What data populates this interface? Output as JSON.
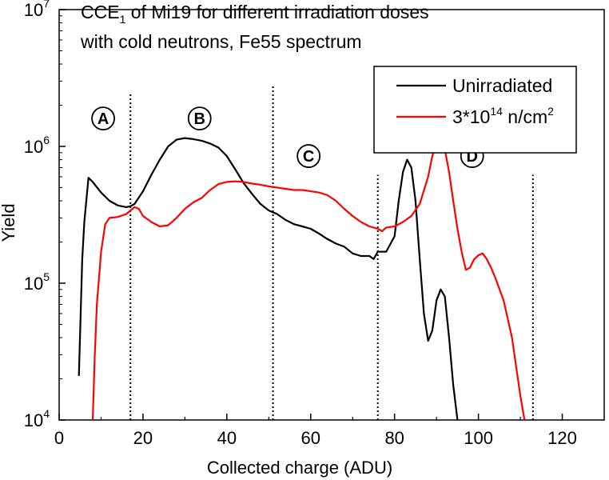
{
  "chart_data": {
    "type": "line",
    "title_lines": [
      "CCE1 of Mi19 for different irradiation doses",
      "with cold neutrons, Fe55 spectrum"
    ],
    "title_parts": {
      "pre": "CCE",
      "sub": "1",
      "post": " of Mi19 for different irradiation doses",
      "line2": "with cold neutrons, Fe55 spectrum"
    },
    "xlabel": "Collected charge (ADU)",
    "ylabel": "Yield",
    "xlim": [
      0,
      130
    ],
    "ylim": [
      10000,
      10000000
    ],
    "y_scale": "log",
    "x_ticks": [
      0,
      20,
      40,
      60,
      80,
      100,
      120
    ],
    "y_ticks": [
      {
        "value": 10000,
        "base": "10",
        "exp": "4"
      },
      {
        "value": 100000,
        "base": "10",
        "exp": "5"
      },
      {
        "value": 1000000,
        "base": "10",
        "exp": "6"
      },
      {
        "value": 10000000,
        "base": "10",
        "exp": "7"
      }
    ],
    "grid": false,
    "legend_position": "top-right",
    "series": [
      {
        "name": "Unirradiated",
        "color": "#000000",
        "points": [
          [
            4.7,
            21000
          ],
          [
            5.5,
            150000
          ],
          [
            6,
            280000
          ],
          [
            7,
            590000
          ],
          [
            8,
            550000
          ],
          [
            10,
            460000
          ],
          [
            12,
            400000
          ],
          [
            14,
            370000
          ],
          [
            16,
            360000
          ],
          [
            17,
            365000
          ],
          [
            18,
            380000
          ],
          [
            20,
            470000
          ],
          [
            22,
            620000
          ],
          [
            24,
            800000
          ],
          [
            26,
            1000000
          ],
          [
            28,
            1120000
          ],
          [
            30,
            1150000
          ],
          [
            32,
            1130000
          ],
          [
            34,
            1100000
          ],
          [
            36,
            1050000
          ],
          [
            38,
            980000
          ],
          [
            40,
            850000
          ],
          [
            42,
            680000
          ],
          [
            44,
            540000
          ],
          [
            46,
            450000
          ],
          [
            48,
            380000
          ],
          [
            50,
            340000
          ],
          [
            52,
            320000
          ],
          [
            54,
            290000
          ],
          [
            56,
            270000
          ],
          [
            58,
            260000
          ],
          [
            60,
            250000
          ],
          [
            62,
            230000
          ],
          [
            64,
            210000
          ],
          [
            66,
            195000
          ],
          [
            68,
            185000
          ],
          [
            70,
            165000
          ],
          [
            72,
            158000
          ],
          [
            74,
            158000
          ],
          [
            75,
            150000
          ],
          [
            76,
            170000
          ],
          [
            78,
            170000
          ],
          [
            80,
            220000
          ],
          [
            81,
            400000
          ],
          [
            82,
            650000
          ],
          [
            83,
            800000
          ],
          [
            84,
            700000
          ],
          [
            85,
            400000
          ],
          [
            86,
            150000
          ],
          [
            87,
            60000
          ],
          [
            88,
            38000
          ],
          [
            89,
            45000
          ],
          [
            90,
            75000
          ],
          [
            91,
            90000
          ],
          [
            92,
            80000
          ],
          [
            93,
            40000
          ],
          [
            94,
            18000
          ],
          [
            95,
            10000
          ]
        ]
      },
      {
        "name": "3*10^14 n/cm^2",
        "legend": {
          "pre": "3*10",
          "sup1": "14",
          "mid": " n/cm",
          "sup2": "2"
        },
        "color": "#ff0000",
        "points": [
          [
            8,
            10000
          ],
          [
            8.5,
            30000
          ],
          [
            9,
            70000
          ],
          [
            10,
            170000
          ],
          [
            11,
            270000
          ],
          [
            12,
            300000
          ],
          [
            14,
            305000
          ],
          [
            16,
            320000
          ],
          [
            18,
            360000
          ],
          [
            19,
            350000
          ],
          [
            20,
            310000
          ],
          [
            22,
            280000
          ],
          [
            24,
            260000
          ],
          [
            26,
            265000
          ],
          [
            28,
            300000
          ],
          [
            30,
            350000
          ],
          [
            32,
            390000
          ],
          [
            34,
            420000
          ],
          [
            36,
            480000
          ],
          [
            38,
            530000
          ],
          [
            40,
            550000
          ],
          [
            42,
            555000
          ],
          [
            44,
            550000
          ],
          [
            46,
            535000
          ],
          [
            48,
            525000
          ],
          [
            50,
            510000
          ],
          [
            52,
            500000
          ],
          [
            54,
            490000
          ],
          [
            56,
            480000
          ],
          [
            58,
            480000
          ],
          [
            60,
            470000
          ],
          [
            62,
            460000
          ],
          [
            64,
            440000
          ],
          [
            66,
            400000
          ],
          [
            68,
            350000
          ],
          [
            70,
            310000
          ],
          [
            72,
            280000
          ],
          [
            74,
            260000
          ],
          [
            76,
            250000
          ],
          [
            77,
            240000
          ],
          [
            78,
            255000
          ],
          [
            80,
            260000
          ],
          [
            82,
            280000
          ],
          [
            84,
            310000
          ],
          [
            86,
            380000
          ],
          [
            88,
            600000
          ],
          [
            89,
            850000
          ],
          [
            90,
            1050000
          ],
          [
            91,
            1100000
          ],
          [
            92,
            950000
          ],
          [
            93,
            650000
          ],
          [
            94,
            400000
          ],
          [
            95,
            250000
          ],
          [
            96,
            170000
          ],
          [
            97,
            125000
          ],
          [
            98,
            130000
          ],
          [
            99,
            150000
          ],
          [
            100,
            160000
          ],
          [
            101,
            165000
          ],
          [
            102,
            150000
          ],
          [
            103,
            130000
          ],
          [
            104,
            110000
          ],
          [
            106,
            75000
          ],
          [
            108,
            40000
          ],
          [
            110,
            15000
          ],
          [
            111,
            10000
          ]
        ]
      }
    ],
    "vertical_markers": [
      {
        "x": 17,
        "y_from": 10000,
        "y_to": 2500000
      },
      {
        "x": 51,
        "y_from": 10000,
        "y_to": 2800000
      },
      {
        "x": 76,
        "y_from": 10000,
        "y_to": 620000
      },
      {
        "x": 113,
        "y_from": 10000,
        "y_to": 620000
      }
    ],
    "regions": [
      {
        "label": "A",
        "x": 10.5,
        "y": 1600000
      },
      {
        "label": "B",
        "x": 33.5,
        "y": 1600000
      },
      {
        "label": "C",
        "x": 59.5,
        "y": 850000
      },
      {
        "label": "D",
        "x": 98.5,
        "y": 850000
      }
    ]
  }
}
